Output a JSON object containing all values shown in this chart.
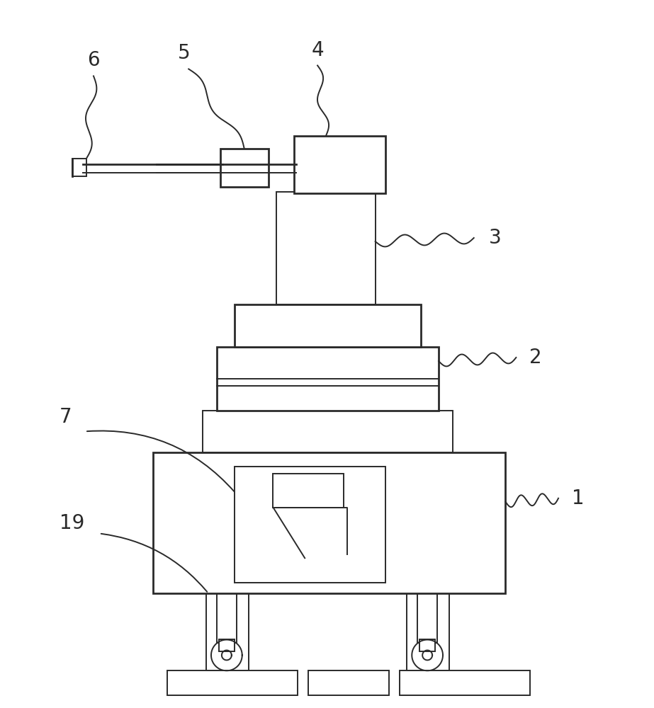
{
  "bg_color": "#ffffff",
  "line_color": "#2a2a2a",
  "lw": 1.4,
  "lw2": 2.0,
  "fig_width": 9.23,
  "fig_height": 10.0
}
